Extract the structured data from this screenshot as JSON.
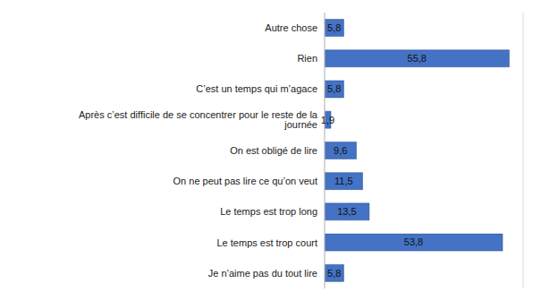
{
  "chart_data": {
    "type": "bar",
    "orientation": "horizontal",
    "categories": [
      "Autre chose",
      "Rien",
      "C’est un temps qui m’agace",
      "Après c’est difficile de se concentrer pour le reste de la journée",
      "On est obligé de lire",
      "On ne peut pas lire ce qu’on veut",
      "Le temps est trop long",
      "Le temps est trop court",
      "Je n’aime pas du tout lire"
    ],
    "values": [
      5.8,
      55.8,
      5.8,
      1.9,
      9.6,
      11.5,
      13.5,
      53.8,
      5.8
    ],
    "value_labels": [
      "5,8",
      "55,8",
      "5,8",
      "1,9",
      "9,6",
      "11,5",
      "13,5",
      "53,8",
      "5,8"
    ],
    "color": "#4472c4",
    "xlim": [
      0,
      60
    ],
    "xticks": [
      0,
      10,
      20,
      30,
      40,
      50,
      60
    ],
    "grid": true,
    "data_labels": true,
    "tick_labels": "y"
  }
}
